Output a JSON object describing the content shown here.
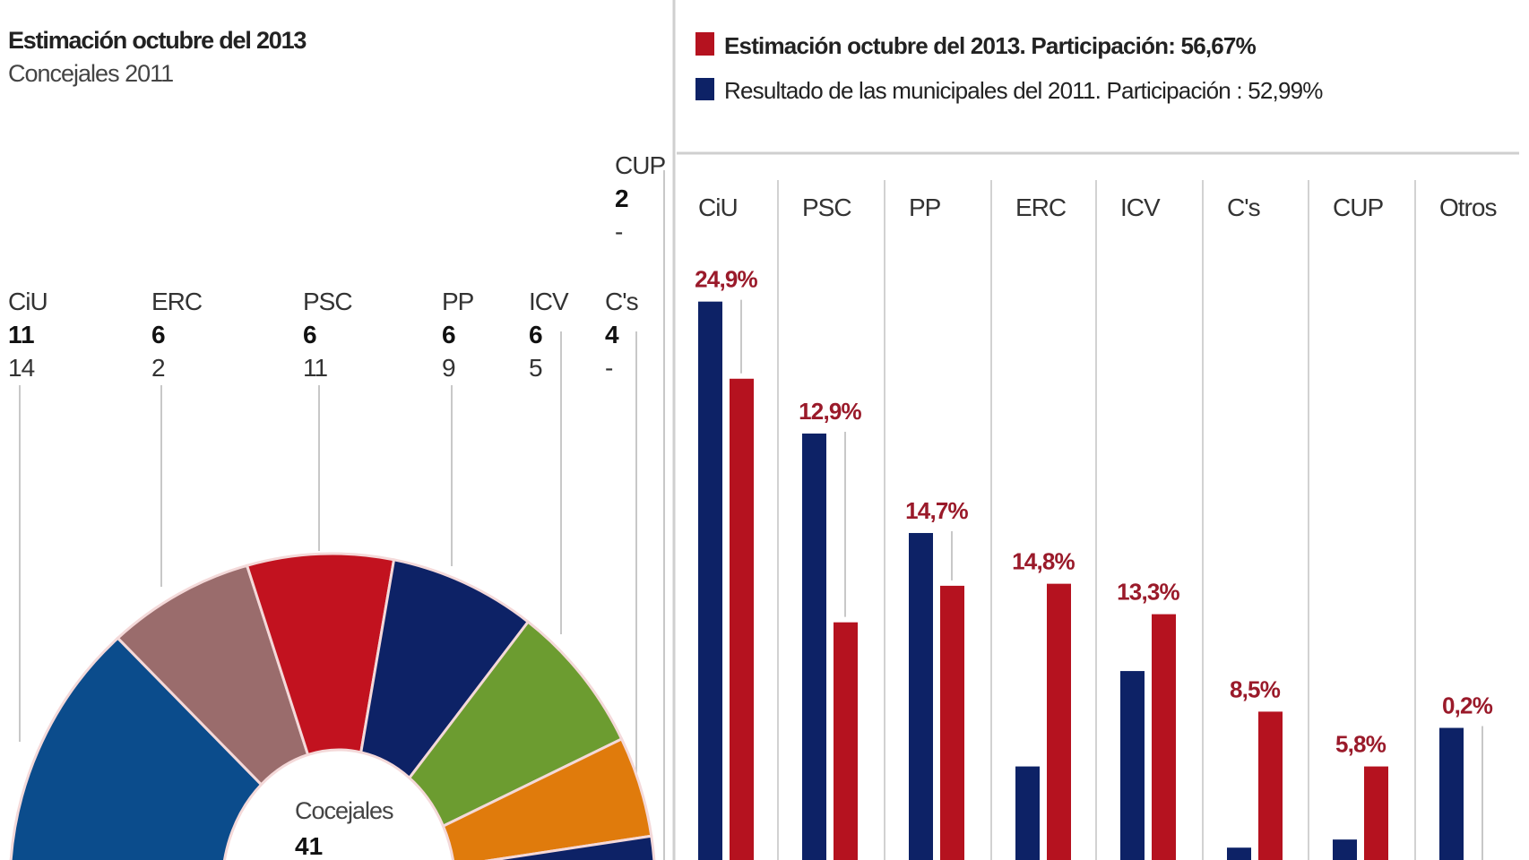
{
  "left": {
    "title": "Estimación octubre del 2013",
    "subtitle": "Concejales 2011",
    "center_label": "Cocejales",
    "center_value": "41"
  },
  "legend": {
    "estimate": "Estimación octubre del 2013. Participación: 56,67%",
    "result2011": "Resultado de las municipales del 2011. Participación : 52,99%"
  },
  "chart_data": [
    {
      "type": "pie",
      "variant": "half-donut",
      "categories": [
        "CiU",
        "ERC",
        "PSC",
        "PP",
        "ICV",
        "C's",
        "CUP"
      ],
      "series": [
        {
          "name": "Estimación octubre del 2013",
          "values": [
            "11",
            "6",
            "6",
            "6",
            "6",
            "4",
            "2"
          ]
        },
        {
          "name": "Concejales 2011",
          "values": [
            "14",
            "2",
            "11",
            "9",
            "5",
            "-",
            "-"
          ]
        }
      ],
      "total": 41,
      "colors": [
        "#0b4c8c",
        "#9a6c6c",
        "#c2121f",
        "#0d2266",
        "#6c9c30",
        "#e07b0c",
        "#0d2266"
      ]
    },
    {
      "type": "bar",
      "categories": [
        "CiU",
        "PSC",
        "PP",
        "ERC",
        "ICV",
        "C's",
        "CUP",
        "Otros"
      ],
      "series": [
        {
          "name": "Resultado de las municipales del 2011. Participación : 52,99%",
          "color": "#0d2266",
          "values": [
            28.7,
            22.2,
            17.3,
            5.8,
            10.5,
            1.8,
            2.2,
            7.7
          ]
        },
        {
          "name": "Estimación octubre del 2013. Participación: 56,67%",
          "color": "#b5121f",
          "values": [
            24.9,
            12.9,
            14.7,
            14.8,
            13.3,
            8.5,
            5.8,
            0.2
          ]
        }
      ],
      "data_labels": [
        "24,9%",
        "12,9%",
        "14,7%",
        "14,8%",
        "13,3%",
        "8,5%",
        "5,8%",
        "0,2%"
      ],
      "ylim": [
        0,
        30
      ],
      "grid": false,
      "legend": "top"
    }
  ]
}
